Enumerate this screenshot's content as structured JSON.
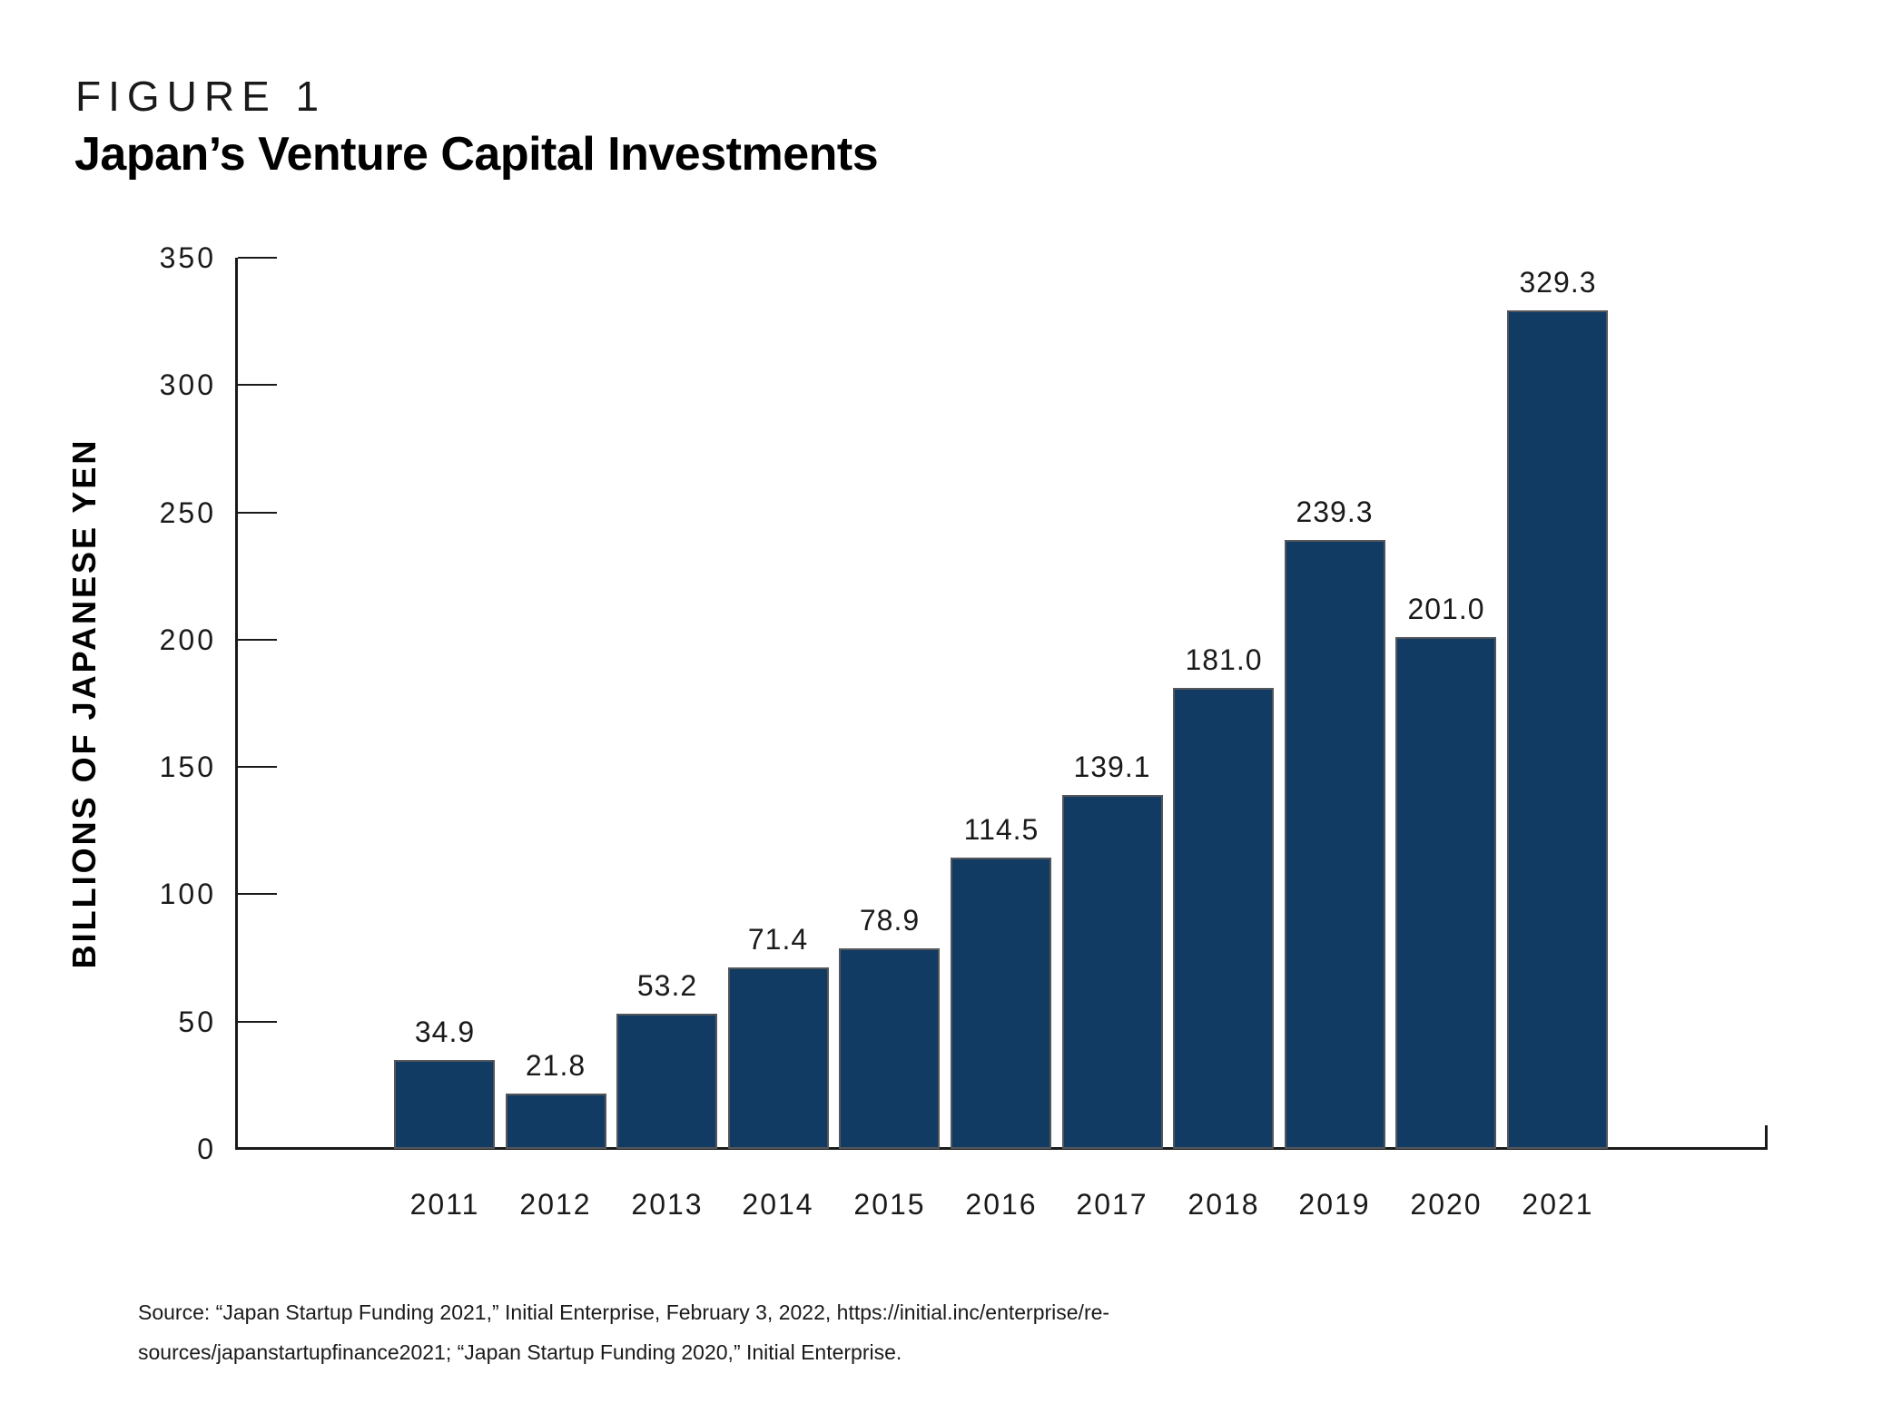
{
  "figure_label": "FIGURE 1",
  "title": "Japan’s Venture Capital Investments",
  "source": {
    "line1": "Source: “Japan Startup Funding 2021,” Initial Enterprise, February 3, 2022, https://initial.inc/enterprise/re-",
    "line2": "sources/japanstartupfinance2021; “Japan Startup Funding 2020,” Initial Enterprise."
  },
  "chart_data": {
    "type": "bar",
    "title": "Japan’s Venture Capital Investments",
    "categories": [
      "2011",
      "2012",
      "2013",
      "2014",
      "2015",
      "2016",
      "2017",
      "2018",
      "2019",
      "2020",
      "2021"
    ],
    "values": [
      34.9,
      21.8,
      53.2,
      71.4,
      78.9,
      114.5,
      139.1,
      181.0,
      239.3,
      201.0,
      329.3
    ],
    "value_labels": [
      "34.9",
      "21.8",
      "53.2",
      "71.4",
      "78.9",
      "114.5",
      "139.1",
      "181.0",
      "239.3",
      "201.0",
      "329.3"
    ],
    "xlabel": "",
    "ylabel": "BILLIONS OF JAPANESE YEN",
    "ylim": [
      0,
      350
    ],
    "yticks": [
      0,
      50,
      100,
      150,
      200,
      250,
      300,
      350
    ],
    "grid": false,
    "legend": "none",
    "colors": {
      "bar_fill": "#113B63",
      "bar_border": "#53565A",
      "axis": "#1A1A1A",
      "text": "#1A1A1A"
    }
  }
}
